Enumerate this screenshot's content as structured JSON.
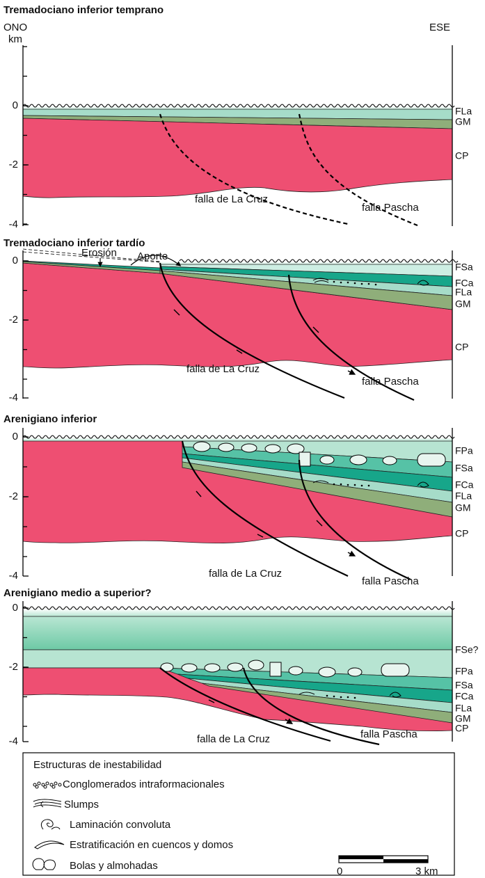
{
  "panels": [
    {
      "title": "Tremadociano inferior temprano",
      "left_label": "ONO",
      "unit": "km",
      "right_label": "ESE",
      "yticks": [
        "0",
        "-2",
        "-4"
      ],
      "layers": [
        "FLa",
        "GM",
        "CP"
      ],
      "faults": [
        "falla de La Cruz",
        "falla Pascha"
      ]
    },
    {
      "title": "Tremadociano inferior tardío",
      "annotations": [
        "Erosión",
        "Aporte"
      ],
      "yticks": [
        "0",
        "-2",
        "-4"
      ],
      "layers": [
        "FSa",
        "FCa",
        "FLa",
        "GM",
        "CP"
      ],
      "faults": [
        "falla de La Cruz",
        "falla Pascha"
      ]
    },
    {
      "title": "Arenigiano inferior",
      "yticks": [
        "0",
        "-2",
        "-4"
      ],
      "layers": [
        "FPa",
        "FSa",
        "FCa",
        "FLa",
        "GM",
        "CP"
      ],
      "faults": [
        "falla de La Cruz",
        "falla Pascha"
      ]
    },
    {
      "title": "Arenigiano medio a superior?",
      "yticks": [
        "0",
        "-2",
        "-4"
      ],
      "layers": [
        "FSe?",
        "FPa",
        "FSa",
        "FCa",
        "FLa",
        "GM",
        "CP"
      ],
      "faults": [
        "falla de La Cruz",
        "falla Pascha"
      ]
    }
  ],
  "legend": {
    "title": "Estructuras de inestabilidad",
    "items": [
      "Conglomerados intraformacionales",
      "Slumps",
      "Laminación convoluta",
      "Estratificación en cuencos y domos",
      "Bolas y almohadas"
    ]
  },
  "scale_bar": {
    "labels": [
      "0",
      "3 km"
    ]
  }
}
